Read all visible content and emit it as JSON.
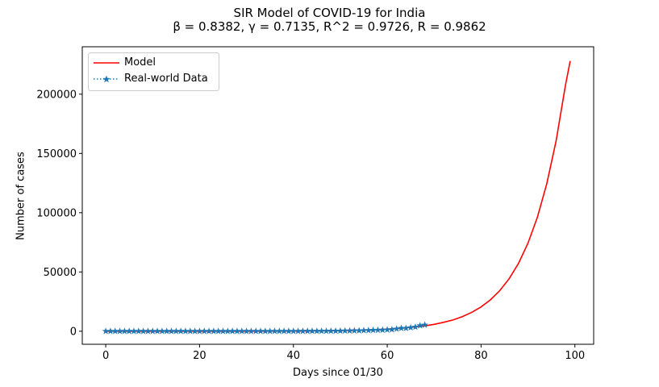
{
  "chart_data": {
    "type": "line",
    "title": "SIR Model of COVID-19 for India",
    "subtitle": "β = 0.8382, γ = 0.7135, R^2 = 0.9726, R = 0.9862",
    "xlabel": "Days since 01/30",
    "ylabel": "Number of cases",
    "xlim": [
      -5,
      104
    ],
    "ylim": [
      -11000,
      240000
    ],
    "xticks": [
      0,
      20,
      40,
      60,
      80,
      100
    ],
    "yticks": [
      0,
      50000,
      100000,
      150000,
      200000
    ],
    "xtick_labels": [
      "0",
      "20",
      "40",
      "60",
      "80",
      "100"
    ],
    "ytick_labels": [
      "0",
      "50000",
      "100000",
      "150000",
      "200000"
    ],
    "grid": false,
    "legend": {
      "placement": "top-left",
      "entries": [
        "Model",
        "Real-world Data"
      ]
    },
    "series": [
      {
        "name": "Model",
        "color": "#ff0000",
        "style": "solid",
        "x": [
          0,
          10,
          20,
          30,
          40,
          45,
          50,
          55,
          58,
          60,
          62,
          64,
          66,
          68,
          70,
          72,
          74,
          76,
          78,
          80,
          82,
          84,
          86,
          88,
          90,
          92,
          94,
          96,
          98,
          99
        ],
        "y": [
          1,
          3,
          10,
          40,
          150,
          310,
          620,
          1000,
          1380,
          1780,
          2300,
          2950,
          3700,
          4500,
          5800,
          7500,
          9500,
          12300,
          15900,
          20500,
          26500,
          34300,
          44400,
          57400,
          74300,
          96100,
          124300,
          160700,
          207800,
          228000
        ]
      },
      {
        "name": "Real-world Data",
        "color": "#1f77b4",
        "style": "dotted-star",
        "x": [
          0,
          1,
          2,
          3,
          4,
          5,
          6,
          7,
          8,
          9,
          10,
          11,
          12,
          13,
          14,
          15,
          16,
          17,
          18,
          19,
          20,
          21,
          22,
          23,
          24,
          25,
          26,
          27,
          28,
          29,
          30,
          31,
          32,
          33,
          34,
          35,
          36,
          37,
          38,
          39,
          40,
          41,
          42,
          43,
          44,
          45,
          46,
          47,
          48,
          49,
          50,
          51,
          52,
          53,
          54,
          55,
          56,
          57,
          58,
          59,
          60,
          61,
          62,
          63,
          64,
          65,
          66,
          67,
          68
        ],
        "y": [
          1,
          1,
          2,
          3,
          3,
          3,
          3,
          3,
          3,
          3,
          3,
          3,
          3,
          3,
          3,
          3,
          3,
          3,
          3,
          3,
          3,
          3,
          3,
          3,
          3,
          3,
          3,
          3,
          3,
          3,
          3,
          3,
          3,
          5,
          6,
          28,
          30,
          31,
          34,
          39,
          43,
          50,
          73,
          75,
          83,
          90,
          114,
          129,
          169,
          194,
          249,
          332,
          396,
          499,
          536,
          657,
          727,
          887,
          987,
          1024,
          1251,
          1397,
          1998,
          2543,
          2567,
          3082,
          3588,
          4778,
          5311
        ]
      }
    ]
  }
}
